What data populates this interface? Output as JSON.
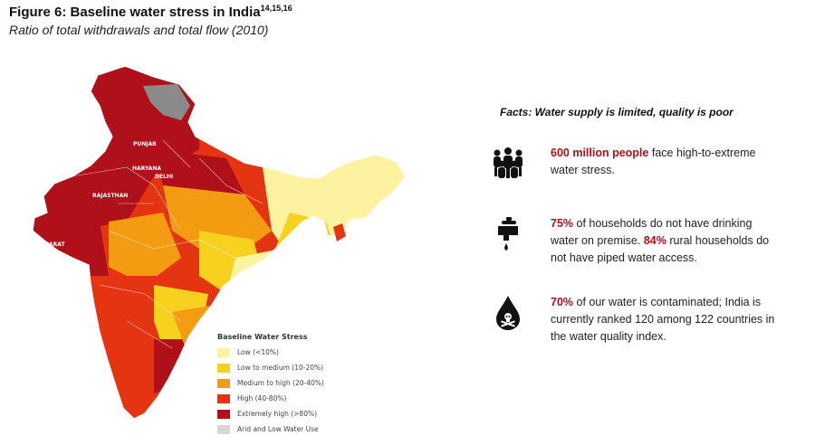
{
  "figure": {
    "title": "Figure 6: Baseline water stress in India",
    "title_sup": "14,15,16",
    "subtitle": "Ratio of total withdrawals and total flow (2010)"
  },
  "map": {
    "state_labels": [
      "PUNJAB",
      "HARYANA",
      "DELHI",
      "RAJASTHAN",
      "GUJARAT"
    ]
  },
  "legend": {
    "title": "Baseline Water Stress",
    "items": [
      {
        "label": "Low (<10%)",
        "color": "#fdf2a0"
      },
      {
        "label": "Low to medium (10-20%)",
        "color": "#f7d11e"
      },
      {
        "label": "Medium to high (20-40%)",
        "color": "#f39c12"
      },
      {
        "label": "High (40-80%)",
        "color": "#e53411"
      },
      {
        "label": "Extremely high (>80%)",
        "color": "#b0101a"
      },
      {
        "label": "Arid and Low Water Use",
        "color": "#d6d6d6"
      }
    ]
  },
  "facts": {
    "heading": "Facts: Water supply is limited, quality is poor",
    "items": [
      {
        "icon": "people-group-icon",
        "highlight": "600 million people",
        "rest": " face high-to-extreme water stress."
      },
      {
        "icon": "water-tap-icon",
        "highlight": "75%",
        "rest": " of households do not have drinking water on premise. ",
        "highlight2": "84%",
        "rest2": " rural households do not have piped water access."
      },
      {
        "icon": "contaminated-water-drop-icon",
        "highlight": "70%",
        "rest": " of our water is contaminated; India is currently ranked 120 among 122 countries in the water quality index."
      }
    ]
  },
  "colors": {
    "highlight": "#b0101a",
    "icon": "#111111"
  }
}
